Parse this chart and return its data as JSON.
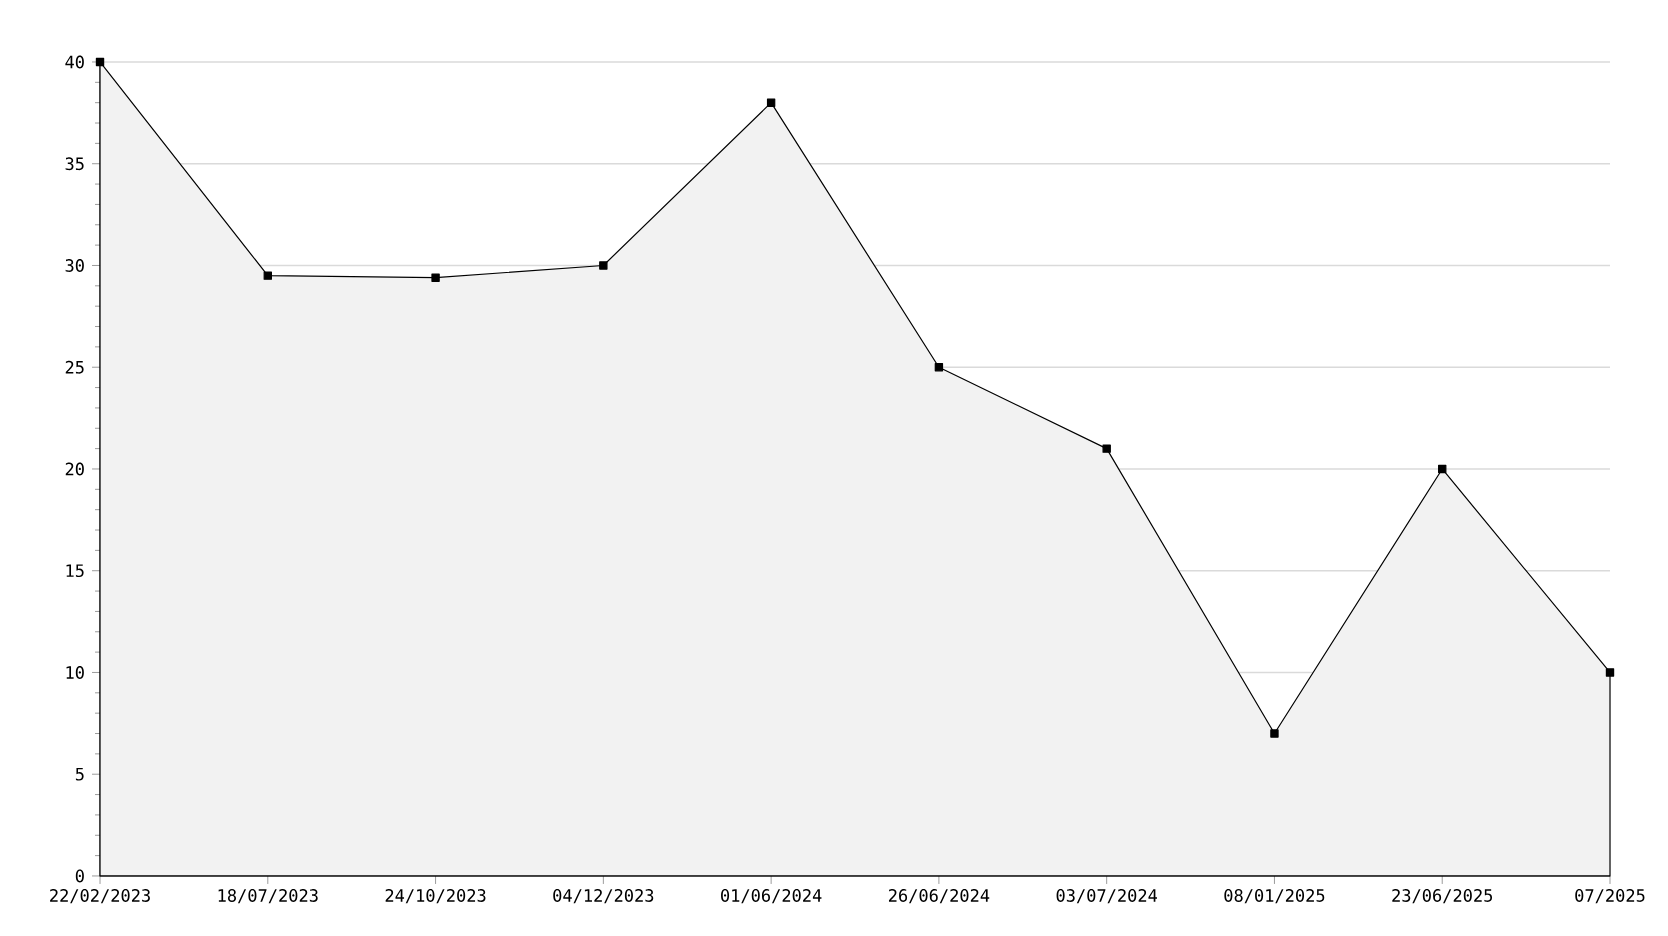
{
  "chart_data": {
    "type": "area",
    "categories": [
      "22/02/2023",
      "18/07/2023",
      "24/10/2023",
      "04/12/2023",
      "01/06/2024",
      "26/06/2024",
      "03/07/2024",
      "08/01/2025",
      "23/06/2025",
      "07/2025"
    ],
    "values": [
      40,
      29.5,
      29.4,
      30,
      38,
      25,
      21,
      7,
      20,
      10
    ],
    "color": "#f2f2f2",
    "ylim": [
      0,
      40
    ],
    "yticks": [
      0,
      5,
      10,
      15,
      20,
      25,
      30,
      35,
      40
    ],
    "grid": "y",
    "marker": "square",
    "line_style": "solid"
  }
}
